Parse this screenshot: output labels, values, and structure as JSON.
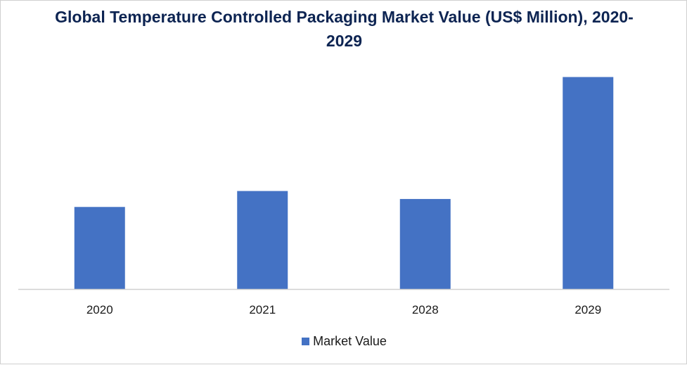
{
  "chart_data": {
    "type": "bar",
    "title": "Global Temperature Controlled Packaging Market Value (US$ Million), 2020-2029",
    "categories": [
      "2020",
      "2021",
      "2028",
      "2029"
    ],
    "series": [
      {
        "name": "Market Value",
        "values": [
          103,
          123,
          113,
          266
        ]
      }
    ],
    "xlabel": "",
    "ylabel": "",
    "ylim": [
      0,
      300
    ],
    "grid": false,
    "legend": "bottom",
    "colors": {
      "bar": "#4472c4",
      "title": "#0d2452",
      "axis": "#d0d0d0"
    }
  }
}
